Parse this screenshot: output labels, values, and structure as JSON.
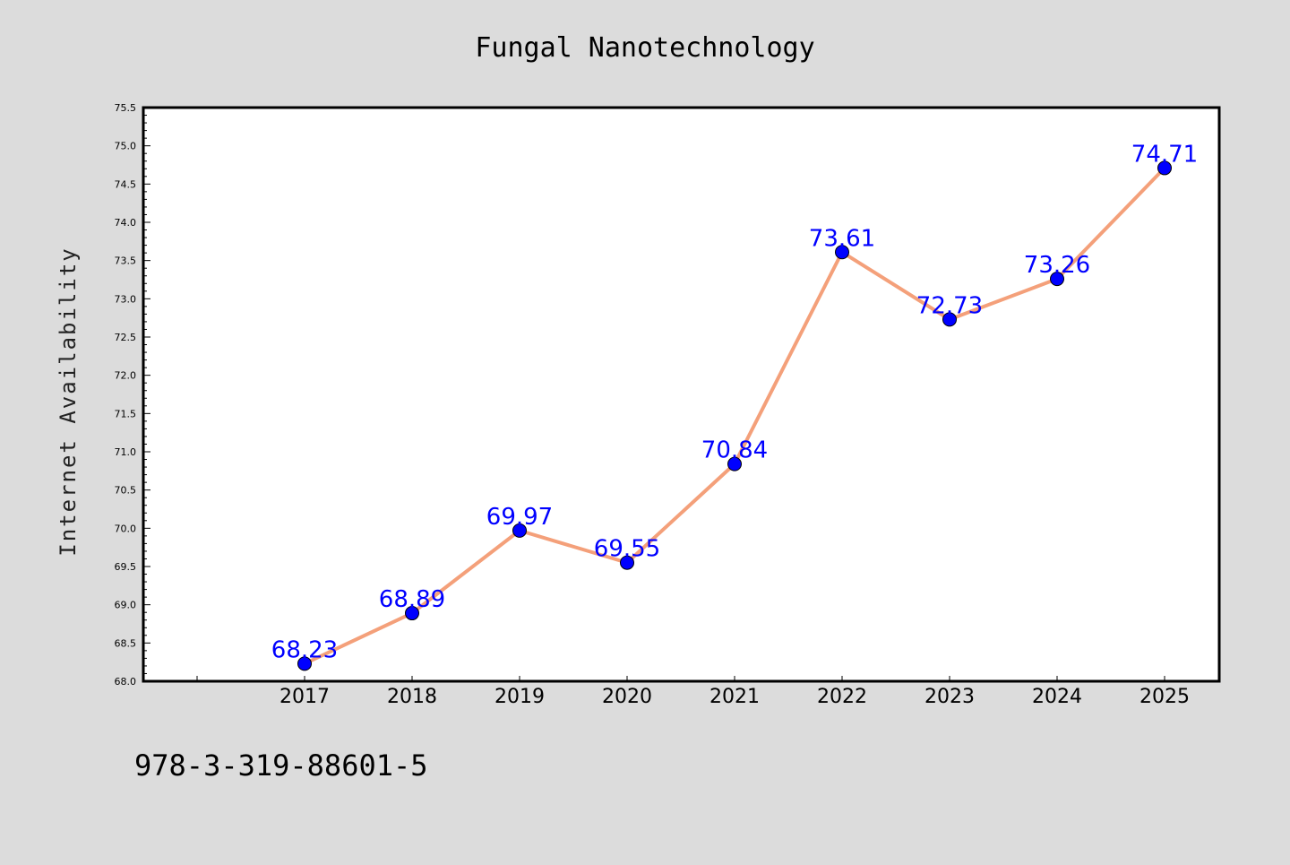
{
  "chart_data": {
    "type": "line",
    "title": "Fungal Nanotechnology",
    "xlabel": "",
    "ylabel": "Internet Availability",
    "categories": [
      "2017",
      "2018",
      "2019",
      "2020",
      "2021",
      "2022",
      "2023",
      "2024",
      "2025"
    ],
    "series": [
      {
        "values": [
          68.23,
          68.89,
          69.97,
          69.55,
          70.84,
          73.61,
          72.73,
          73.26,
          74.71
        ],
        "line_color": "#f4a07a",
        "marker_color": "#0000ff"
      }
    ],
    "data_labels": [
      "68.23",
      "68.89",
      "69.97",
      "69.55",
      "70.84",
      "73.61",
      "72.73",
      "73.26",
      "74.71"
    ],
    "ylim": [
      68.0,
      75.5
    ],
    "yticks": [
      "68.0",
      "68.5",
      "69.0",
      "69.5",
      "70.0",
      "70.5",
      "71.0",
      "71.5",
      "72.0",
      "72.5",
      "73.0",
      "73.5",
      "74.0",
      "74.5",
      "75.0",
      "75.5"
    ],
    "grid": false,
    "legend": "none"
  },
  "footer": {
    "isbn": "978-3-319-88601-5"
  },
  "colors": {
    "background": "#dcdcdc",
    "plot_background": "#ffffff",
    "data_label": "#0000ff"
  }
}
